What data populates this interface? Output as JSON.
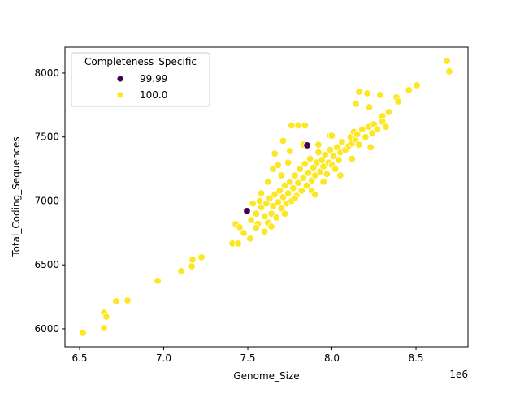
{
  "chart_data": {
    "type": "scatter",
    "x_label": "Genome_Size",
    "y_label": "Total_Coding_Sequences",
    "x_offset_label": "1e6",
    "legend_title": "Completeness_Specific",
    "legend_position": "upper left",
    "xlim": [
      6413000,
      8809000
    ],
    "ylim": [
      5860,
      8203
    ],
    "xticks": [
      {
        "value": 6500000,
        "label": "6.5"
      },
      {
        "value": 7000000,
        "label": "7.0"
      },
      {
        "value": 7500000,
        "label": "7.5"
      },
      {
        "value": 8000000,
        "label": "8.0"
      },
      {
        "value": 8500000,
        "label": "8.5"
      }
    ],
    "yticks": [
      6000,
      6500,
      7000,
      7500,
      8000
    ],
    "series": [
      {
        "name": "99.99",
        "color": "#440154",
        "x": [
          7495000,
          7853000
        ],
        "values": [
          6921,
          7435
        ]
      },
      {
        "name": "100.0",
        "color": "#fde725",
        "x": [
          6519000,
          6645000,
          6659000,
          6645000,
          6717000,
          6785000,
          6964000,
          7104000,
          7167000,
          7171000,
          7225000,
          7408000,
          7442000,
          7428000,
          7452000,
          7476000,
          7514000,
          8684000,
          8698000,
          8505000,
          8457000,
          8384000,
          8394000,
          8162000,
          8210000,
          8287000,
          8143000,
          8222000,
          8338000,
          8300000,
          8239000,
          7520000,
          7550000,
          7560000,
          7580000,
          7600000,
          7610000,
          7620000,
          7630000,
          7640000,
          7650000,
          7660000,
          7670000,
          7680000,
          7690000,
          7700000,
          7710000,
          7720000,
          7730000,
          7740000,
          7750000,
          7760000,
          7770000,
          7780000,
          7790000,
          7800000,
          7810000,
          7820000,
          7830000,
          7840000,
          7850000,
          7860000,
          7870000,
          7880000,
          7890000,
          7900000,
          7910000,
          7920000,
          7930000,
          7940000,
          7950000,
          7960000,
          7970000,
          7980000,
          7990000,
          8000000,
          8010000,
          8020000,
          8030000,
          8040000,
          8050000,
          8060000,
          8080000,
          8100000,
          8110000,
          8120000,
          8130000,
          8140000,
          8150000,
          8160000,
          8180000,
          8200000,
          8220000,
          8240000,
          8250000,
          8270000,
          8300000,
          8320000,
          8120000,
          8230000,
          7550000,
          7600000,
          7640000,
          7660000,
          7650000,
          7710000,
          7750000,
          7800000,
          7840000,
          7760000,
          7920000,
          7990000,
          8000000,
          7830000,
          7700000,
          7740000,
          7680000,
          7620000,
          7580000,
          7530000,
          7570000,
          7720000,
          7780000,
          7880000,
          7950000,
          8050000,
          7900000
        ],
        "values": [
          5968,
          6127,
          6095,
          6006,
          6216,
          6222,
          6375,
          6451,
          6489,
          6540,
          6559,
          6667,
          6667,
          6819,
          6794,
          6749,
          6705,
          8095,
          8013,
          7905,
          7867,
          7810,
          7778,
          7854,
          7841,
          7829,
          7759,
          7733,
          7695,
          7663,
          7600,
          6850,
          6900,
          6820,
          6950,
          6880,
          6980,
          6830,
          7020,
          6900,
          6960,
          7050,
          6870,
          6990,
          7080,
          6940,
          7030,
          7120,
          6980,
          7060,
          7150,
          7000,
          7100,
          7200,
          7040,
          7140,
          7250,
          7080,
          7180,
          7290,
          7120,
          7220,
          7330,
          7160,
          7260,
          7200,
          7300,
          7380,
          7230,
          7320,
          7270,
          7360,
          7210,
          7300,
          7400,
          7280,
          7350,
          7250,
          7420,
          7320,
          7380,
          7460,
          7400,
          7430,
          7500,
          7450,
          7540,
          7480,
          7520,
          7440,
          7560,
          7500,
          7580,
          7530,
          7600,
          7560,
          7620,
          7580,
          7330,
          7420,
          6790,
          6760,
          6800,
          7370,
          7250,
          7470,
          7390,
          7590,
          7590,
          7590,
          7440,
          7510,
          7510,
          7440,
          7200,
          7300,
          7280,
          7150,
          7060,
          6980,
          7000,
          6900,
          7020,
          7080,
          7150,
          7200,
          7050
        ]
      }
    ]
  }
}
